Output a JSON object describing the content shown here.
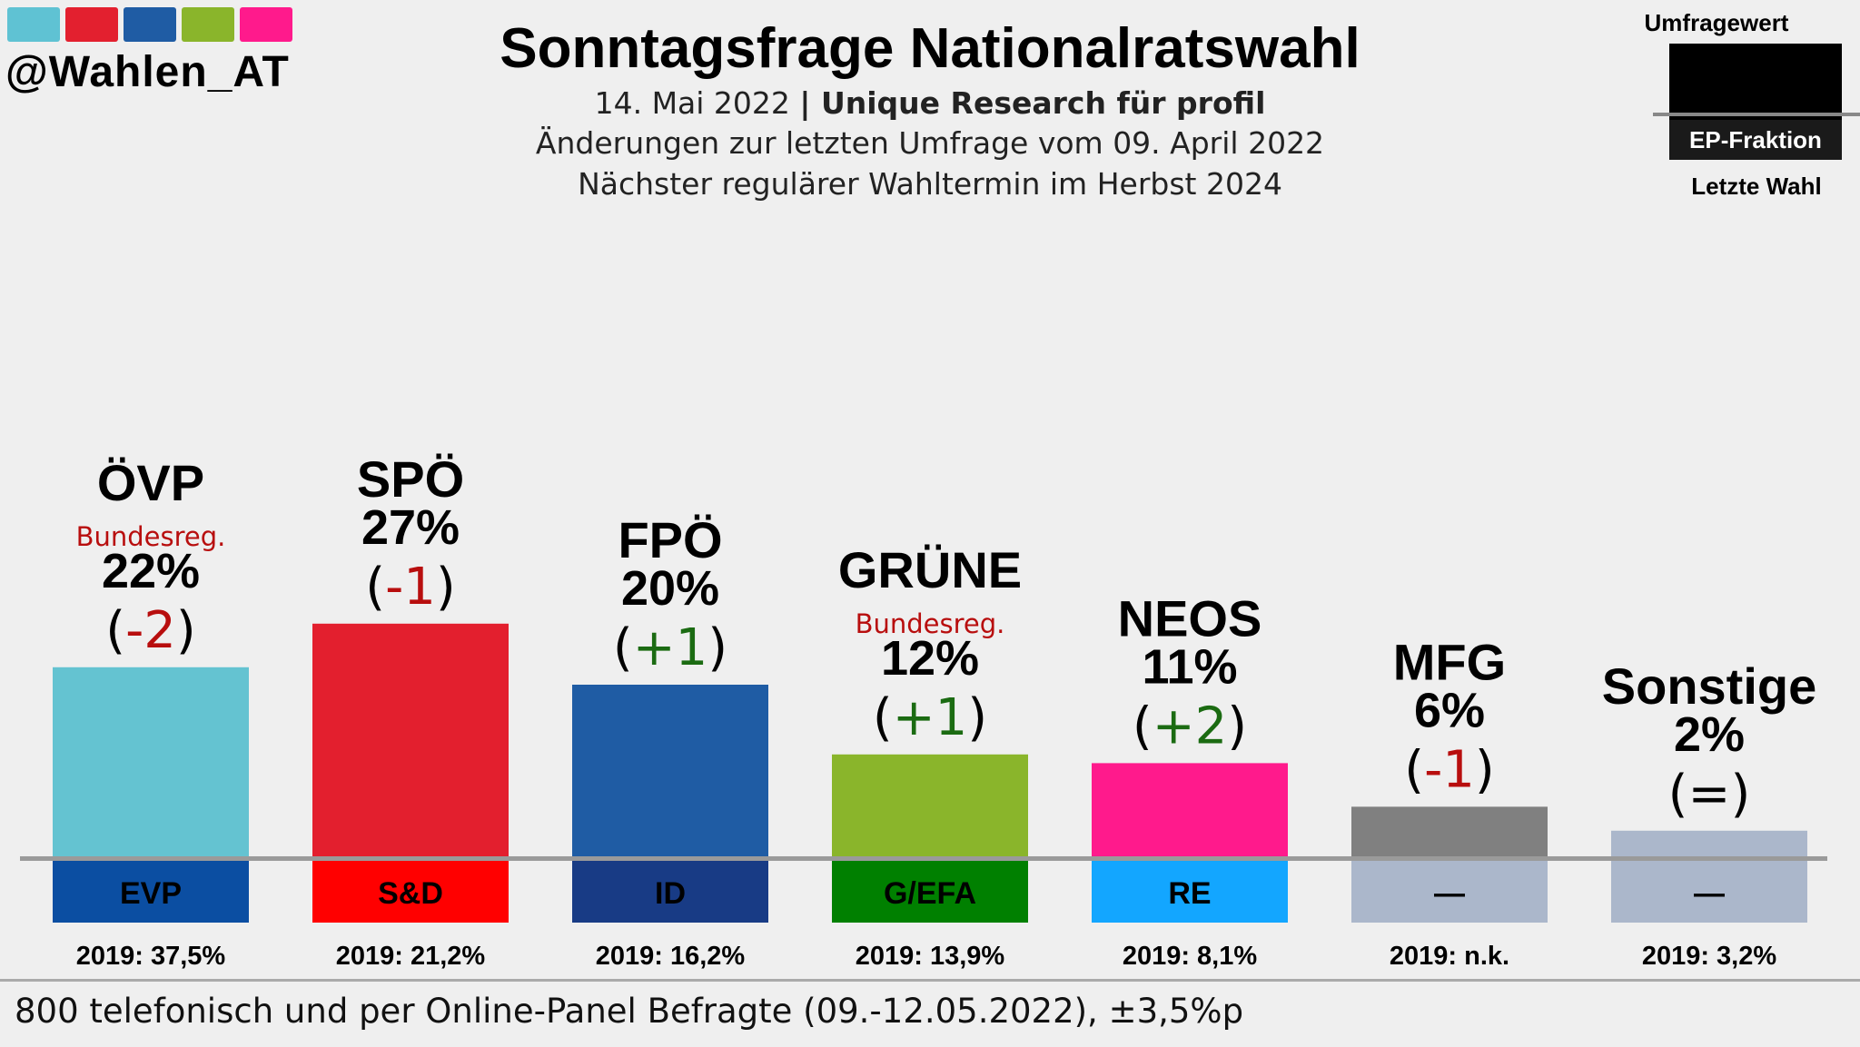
{
  "header": {
    "brand_colors": [
      "#5fc2d3",
      "#e3202f",
      "#1f5ca4",
      "#8ab52b",
      "#ff1a8c"
    ],
    "handle": "@Wahlen_AT",
    "title": "Sonntagsfrage Nationalratswahl",
    "date": "14. Mai 2022",
    "source": "Unique Research für profil",
    "changes_note": "Änderungen zur letzten Umfrage vom 09. April 2022",
    "next_election": "Nächster regulärer Wahltermin im Herbst 2024"
  },
  "legend": {
    "poll_value": "Umfragewert",
    "ep_fraction": "EP-Fraktion",
    "last_election": "Letzte Wahl"
  },
  "footer": {
    "note": "800 telefonisch und per Online-Panel Befragte (09.-12.05.2022), ±3,5%p"
  },
  "chart_data": {
    "type": "bar",
    "title": "Sonntagsfrage Nationalratswahl",
    "categories": [
      "ÖVP",
      "SPÖ",
      "FPÖ",
      "GRÜNE",
      "NEOS",
      "MFG",
      "Sonstige"
    ],
    "values": [
      22,
      27,
      20,
      12,
      11,
      6,
      2
    ],
    "value_labels": [
      "22%",
      "27%",
      "20%",
      "12%",
      "11%",
      "6%",
      "2%"
    ],
    "changes": [
      "-2",
      "-1",
      "+1",
      "+1",
      "+2",
      "-1",
      "="
    ],
    "change_labels": [
      "(-2)",
      "(-1)",
      "(+1)",
      "(+1)",
      "(+2)",
      "(-1)",
      "(=)"
    ],
    "government_tags": [
      "Bundesreg.",
      "",
      "",
      "Bundesreg.",
      "",
      "",
      ""
    ],
    "ep_fractions": [
      "EVP",
      "S&D",
      "ID",
      "G/EFA",
      "RE",
      "—",
      "—"
    ],
    "last_election": [
      "2019: 37,5%",
      "2019: 21,2%",
      "2019: 16,2%",
      "2019: 13,9%",
      "2019: 8,1%",
      "2019: n.k.",
      "2019: 3,2%"
    ],
    "bar_colors": [
      "#64c3d1",
      "#e31f2e",
      "#1f5ca4",
      "#8ab52b",
      "#ff1a8c",
      "#808080",
      "#abb7cb"
    ],
    "fraction_colors": [
      "#0b4ea2",
      "#ff0000",
      "#183b85",
      "#008000",
      "#13a6ff",
      "#abb7cb",
      "#abb7cb"
    ],
    "change_colors": {
      "neg": "#b80e0e",
      "pos": "#1b6b12",
      "zero": "#000000"
    },
    "ylim": [
      0,
      30
    ]
  }
}
